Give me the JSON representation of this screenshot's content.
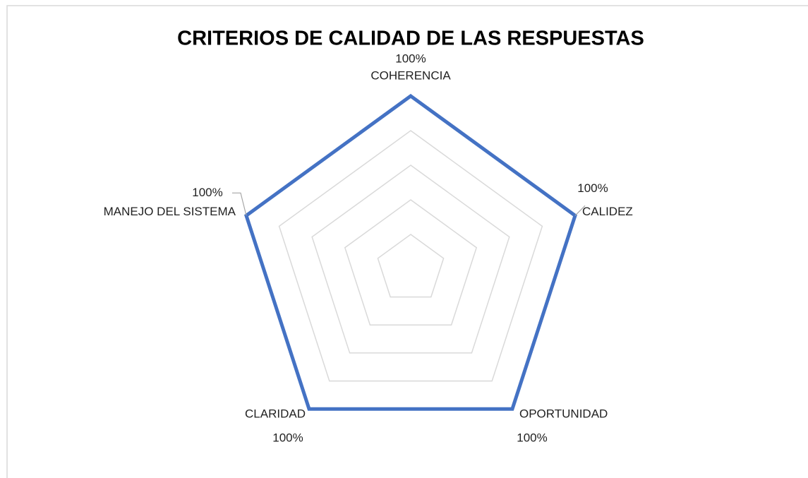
{
  "chart_data": {
    "type": "radar",
    "title": "CRITERIOS DE CALIDAD DE LAS RESPUESTAS",
    "categories": [
      "COHERENCIA",
      "CALIDEZ",
      "OPORTUNIDAD",
      "CLARIDAD",
      "MANEJO DEL SISTEMA"
    ],
    "values": [
      100,
      100,
      100,
      100,
      100
    ],
    "value_labels": [
      "100%",
      "100%",
      "100%",
      "100%",
      "100%"
    ],
    "color": "#4472c4",
    "rlim": [
      0,
      100
    ],
    "rticks": [
      20,
      40,
      60,
      80,
      100
    ],
    "grid": true
  }
}
